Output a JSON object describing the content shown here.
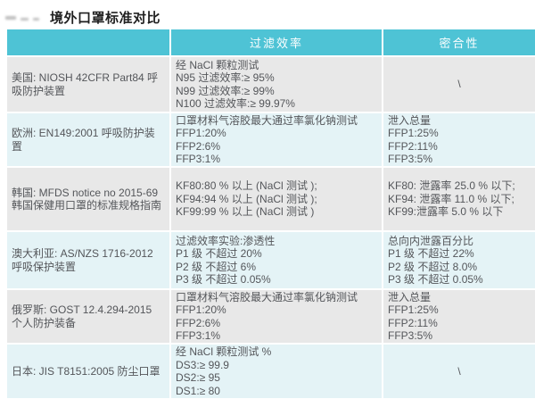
{
  "page": {
    "title": "境外口罩标准对比"
  },
  "table": {
    "columns": [
      "",
      "过滤效率",
      "密合性"
    ],
    "rows": [
      {
        "id": "usa",
        "standard": "美国: NIOSH 42CFR Part84 呼吸防护装置",
        "filtration": [
          "经 NaCl 颗粒测试",
          "N95 过滤效率:≥ 95%",
          "N99 过滤效率:≥ 99%",
          "N100 过滤效率:≥ 99.97%"
        ],
        "fit": [
          "\\"
        ]
      },
      {
        "id": "europe",
        "standard": "欧洲: EN149:2001 呼吸防护装置",
        "filtration": [
          "口罩材料气溶胶最大通过率氯化钠测试",
          "FFP1:20%",
          "FFP2:6%",
          "FFP3:1%"
        ],
        "fit": [
          "泄入总量",
          "FFP1:25%",
          "FFP2:11%",
          "FFP3:5%"
        ]
      },
      {
        "id": "korea",
        "standard": "韩国: MFDS notice no 2015-69 韩国保健用口罩的标准规格指南",
        "filtration": [
          "KF80:80 % 以上 (NaCl 测试 );",
          "KF94:94 % 以上 (NaCl 测试 );",
          "KF99:99 % 以上 (NaCl 测试 )"
        ],
        "fit": [
          "KF80: 泄露率 25.0 % 以下;",
          "KF94: 泄露率 11.0 % 以下;",
          "KF99:泄露率 5.0 % 以下"
        ]
      },
      {
        "id": "australia",
        "standard": "澳大利亚: AS/NZS 1716-2012 呼吸保护装置",
        "filtration": [
          "过滤效率实验:渗透性",
          "P1 级 不超过 20%",
          "P2 级 不超过 6%",
          "P3 级 不超过 0.05%"
        ],
        "fit": [
          "总向内泄露百分比",
          "P1 级 不超过 22%",
          "P2 级 不超过 8.0%",
          "P3 级 不超过 0.05%"
        ]
      },
      {
        "id": "russia",
        "standard": "俄罗斯: GOST 12.4.294-2015 个人防护装备",
        "filtration": [
          "口罩材料气溶胶最大通过率氯化钠测试",
          "FFP1:20%",
          "FFP2:6%",
          "FFP3:1%"
        ],
        "fit": [
          "泄入总量",
          "FFP1:25%",
          "FFP2:11%",
          "FFP3:5%"
        ]
      },
      {
        "id": "japan",
        "standard": "日本: JIS T8151:2005 防尘口罩",
        "filtration": [
          "经 NaCl 颗粒测试 %",
          "DS3:≥ 99.9",
          "DS2:≥ 95",
          "DS1:≥ 80"
        ],
        "fit": [
          "\\"
        ]
      }
    ]
  },
  "colors": {
    "header_bg": "#4ec3d5",
    "row_gray": "#e8e8e8",
    "row_cyan": "#e4f3f6",
    "body_text": "#54565a",
    "title_text": "#1f1f1f"
  }
}
